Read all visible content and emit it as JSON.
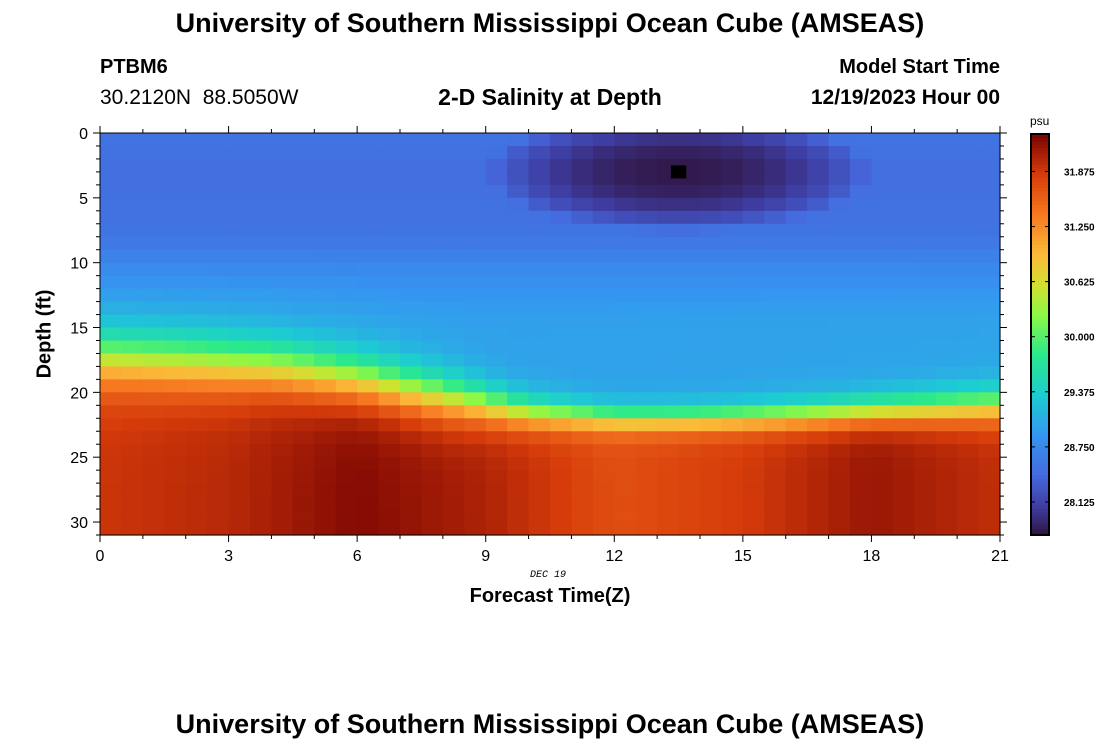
{
  "header": {
    "title": "University of Southern Mississippi Ocean Cube (AMSEAS)",
    "station_id": "PTBM6",
    "station_coords": "30.2120N  88.5050W",
    "subtitle": "2-D Salinity at Depth",
    "model_start_label": "Model Start Time",
    "model_start_value": "12/19/2023 Hour 00"
  },
  "footer": {
    "title": "University of Southern Mississippi Ocean Cube (AMSEAS)"
  },
  "chart_data": {
    "type": "heatmap",
    "title": "2-D Salinity at Depth",
    "xlabel": "Forecast Time(Z)",
    "ylabel": "Depth (ft)",
    "date_annotation": "DEC 19",
    "xlim": [
      0,
      21
    ],
    "ylim": [
      31,
      0
    ],
    "x_ticks": [
      0,
      3,
      6,
      9,
      12,
      15,
      18,
      21
    ],
    "y_ticks": [
      0,
      5,
      10,
      15,
      20,
      25,
      30
    ],
    "x_resolution_hours": 0.5,
    "y_resolution_ft": 1,
    "colorbar": {
      "unit": "psu",
      "range": [
        27.75,
        32.3
      ],
      "ticks": [
        "31.875",
        "31.250",
        "30.625",
        "30.000",
        "29.375",
        "28.750",
        "28.125"
      ]
    },
    "surface_band": {
      "depths": [
        0,
        2,
        5,
        8,
        10,
        13,
        15
      ],
      "salinity": [
        28.55,
        28.5,
        28.5,
        28.55,
        28.7,
        28.85,
        28.9
      ]
    },
    "plume": {
      "center_x": 13.5,
      "center_depth": 3,
      "radius_x": 4.5,
      "radius_depth": 4.6,
      "min_salinity": 27.8
    },
    "halocline_depth": {
      "x": [
        0,
        2,
        4,
        6,
        8,
        10,
        12,
        14,
        16,
        18,
        21
      ],
      "depth": [
        17.3,
        17.6,
        18,
        19,
        20.4,
        21.6,
        22,
        22,
        21.8,
        21.5,
        21
      ],
      "width": [
        2.5,
        2.5,
        2.4,
        2.3,
        2.1,
        1.4,
        1.1,
        1.1,
        1.2,
        1.3,
        1.5
      ]
    },
    "upper_salinity": {
      "x": [
        0,
        21
      ],
      "salinity": [
        28.95,
        29.0
      ]
    },
    "bottom_salinity": {
      "x": [
        0,
        3,
        6,
        9,
        12,
        15,
        18,
        21
      ],
      "salinity": [
        31.9,
        32.0,
        32.25,
        32.05,
        31.7,
        31.85,
        32.15,
        31.95
      ]
    },
    "missing_cell": {
      "x": 13.5,
      "depth": 3
    }
  }
}
